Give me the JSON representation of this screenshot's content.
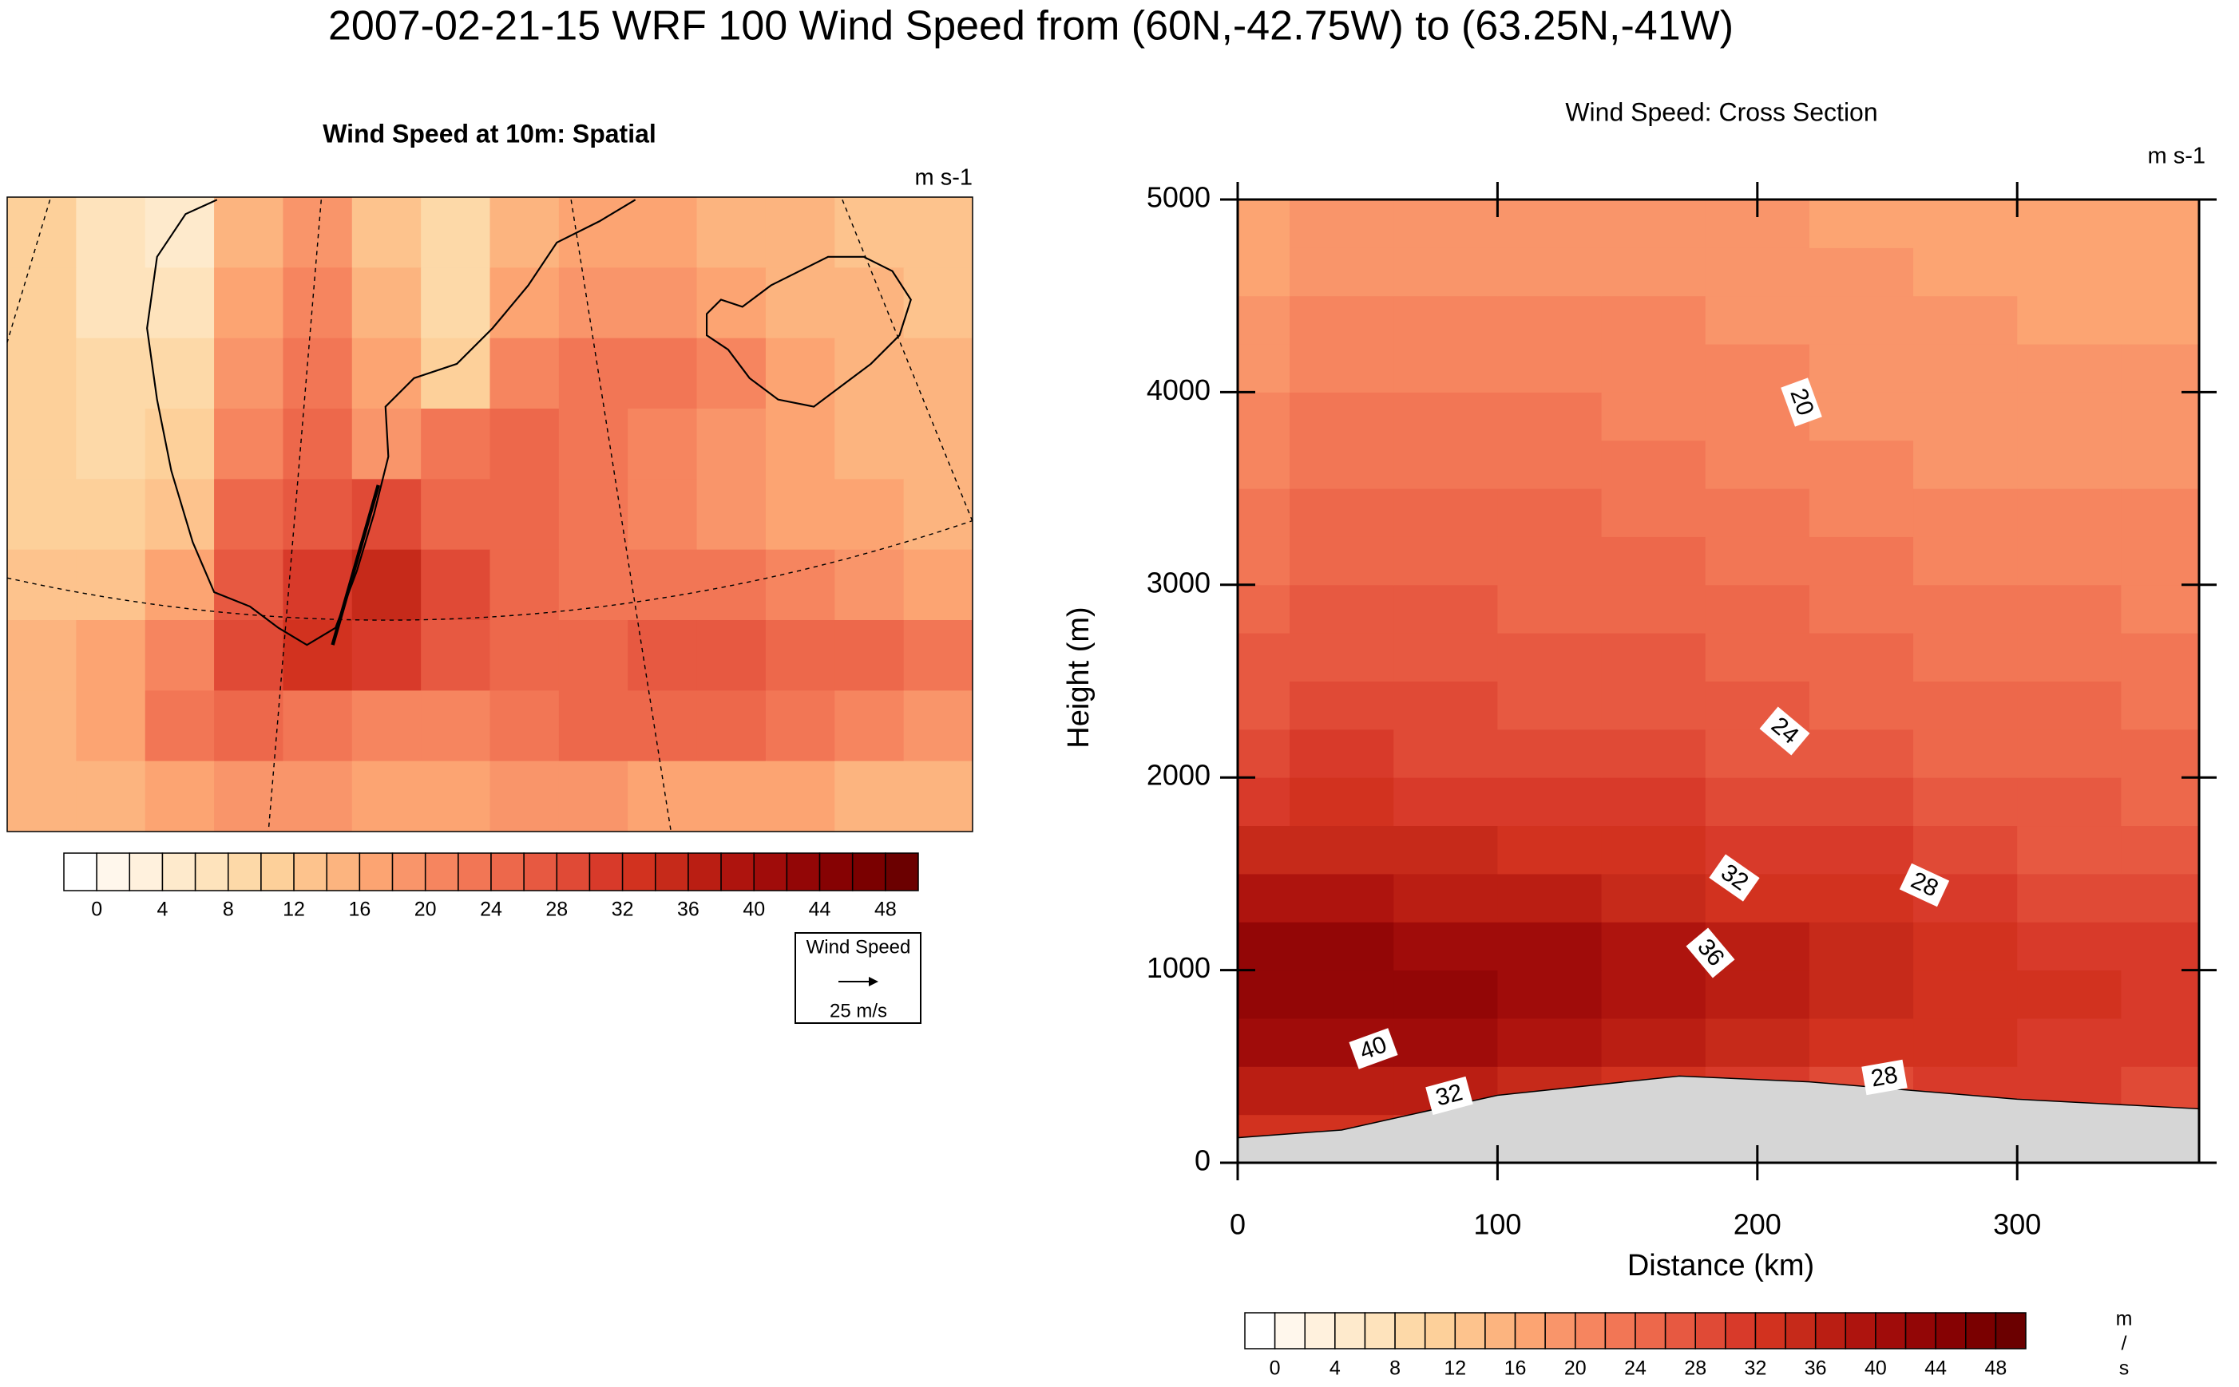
{
  "title": "2007-02-21-15 WRF 100 Wind Speed from (60N,-42.75W) to (63.25N,-41W)",
  "colorbar": {
    "levels": [
      0,
      2,
      4,
      6,
      8,
      10,
      12,
      14,
      16,
      18,
      20,
      22,
      24,
      26,
      28,
      30,
      32,
      34,
      36,
      38,
      40,
      42,
      44,
      46,
      48
    ],
    "ticks": [
      0,
      4,
      8,
      12,
      16,
      20,
      24,
      28,
      32,
      36,
      40,
      44,
      48
    ],
    "colors": [
      "#ffffff",
      "#fff7ec",
      "#fff1dd",
      "#feeacc",
      "#fee3bc",
      "#fdd9a8",
      "#fdd09a",
      "#fdc38d",
      "#fcb47f",
      "#fca472",
      "#f9956a",
      "#f6855f",
      "#f27655",
      "#ed684b",
      "#e75941",
      "#e04a36",
      "#d83a2a",
      "#d2321f",
      "#c62a1a",
      "#ba1e13",
      "#ae140e",
      "#a00c0a",
      "#930606",
      "#860203",
      "#7a0000",
      "#6b0000"
    ]
  },
  "chart_data": [
    {
      "type": "heatmap",
      "title": "Wind Speed at 10m: Spatial",
      "units": "m s-1",
      "legend_title": "Wind Speed",
      "legend_ref": "25 m/s",
      "z": [
        [
          10,
          6,
          4,
          14,
          18,
          12,
          8,
          14,
          16,
          16,
          14,
          14,
          12,
          12
        ],
        [
          10,
          6,
          6,
          16,
          20,
          14,
          8,
          16,
          18,
          18,
          16,
          14,
          14,
          12
        ],
        [
          10,
          8,
          8,
          18,
          22,
          16,
          10,
          20,
          22,
          22,
          20,
          16,
          14,
          14
        ],
        [
          10,
          8,
          10,
          20,
          24,
          18,
          22,
          24,
          22,
          20,
          18,
          16,
          14,
          14
        ],
        [
          10,
          10,
          12,
          24,
          26,
          28,
          24,
          24,
          22,
          20,
          18,
          16,
          16,
          14
        ],
        [
          12,
          12,
          16,
          26,
          30,
          34,
          28,
          24,
          22,
          22,
          22,
          20,
          18,
          16
        ],
        [
          14,
          16,
          20,
          28,
          32,
          30,
          26,
          24,
          24,
          26,
          26,
          24,
          24,
          22
        ],
        [
          14,
          16,
          22,
          24,
          22,
          20,
          20,
          22,
          24,
          24,
          24,
          22,
          20,
          18
        ],
        [
          14,
          14,
          16,
          18,
          18,
          16,
          16,
          18,
          18,
          16,
          16,
          16,
          14,
          14
        ]
      ]
    },
    {
      "type": "contour",
      "title": "Wind Speed: Cross Section",
      "units": "m s-1",
      "xlabel": "Distance (km)",
      "ylabel": "Height (m)",
      "xlim": [
        0,
        370
      ],
      "ylim": [
        0,
        5000
      ],
      "xticks": [
        0,
        100,
        200,
        300
      ],
      "yticks": [
        0,
        1000,
        2000,
        3000,
        4000,
        5000
      ],
      "x": [
        0,
        40,
        80,
        120,
        160,
        200,
        240,
        280,
        320,
        360
      ],
      "y": [
        125,
        375,
        625,
        875,
        1125,
        1375,
        1625,
        1875,
        2125,
        2375,
        2625,
        2875,
        3125,
        3375,
        3625,
        3875,
        4125,
        4375,
        4625,
        4875
      ],
      "z": [
        [
          32,
          32,
          31,
          30,
          29,
          28,
          27,
          27,
          27,
          27
        ],
        [
          36,
          37,
          36,
          34,
          33,
          31,
          29,
          30,
          30,
          29
        ],
        [
          40,
          41,
          40,
          38,
          37,
          35,
          33,
          32,
          31,
          30
        ],
        [
          43,
          43,
          42,
          41,
          39,
          37,
          35,
          33,
          32,
          31
        ],
        [
          42,
          42,
          41,
          40,
          38,
          36,
          34,
          32,
          31,
          30
        ],
        [
          38,
          38,
          37,
          36,
          35,
          33,
          32,
          30,
          29,
          28
        ],
        [
          34,
          34,
          34,
          33,
          32,
          31,
          30,
          28,
          27,
          27
        ],
        [
          31,
          32,
          31,
          31,
          30,
          29,
          28,
          27,
          26,
          25
        ],
        [
          29,
          30,
          29,
          29,
          28,
          27,
          26,
          25,
          25,
          24
        ],
        [
          27,
          28,
          28,
          27,
          27,
          26,
          25,
          24,
          24,
          23
        ],
        [
          26,
          27,
          27,
          26,
          26,
          25,
          24,
          23,
          23,
          22
        ],
        [
          25,
          26,
          26,
          25,
          25,
          24,
          23,
          22,
          22,
          21
        ],
        [
          23,
          25,
          25,
          25,
          24,
          23,
          22,
          21,
          21,
          20
        ],
        [
          22,
          24,
          24,
          24,
          23,
          22,
          21,
          20,
          20,
          20
        ],
        [
          21,
          23,
          23,
          23,
          22,
          21,
          20,
          19,
          19,
          19
        ],
        [
          20,
          22,
          22,
          22,
          21,
          20,
          19,
          19,
          19,
          18
        ],
        [
          19,
          21,
          21,
          21,
          21,
          20,
          19,
          18,
          18,
          18
        ],
        [
          18,
          20,
          20,
          20,
          20,
          19,
          18,
          18,
          17,
          17
        ],
        [
          17,
          19,
          19,
          19,
          19,
          19,
          18,
          17,
          17,
          16
        ],
        [
          16,
          18,
          18,
          18,
          18,
          18,
          17,
          17,
          16,
          16
        ]
      ],
      "terrain": {
        "x": [
          0,
          40,
          100,
          170,
          220,
          300,
          370
        ],
        "height": [
          130,
          170,
          350,
          450,
          420,
          330,
          280
        ]
      },
      "contour_labels": [
        20,
        24,
        32,
        28,
        36,
        40,
        32,
        28
      ],
      "units_vertical": [
        "m",
        "/",
        "s"
      ]
    }
  ]
}
